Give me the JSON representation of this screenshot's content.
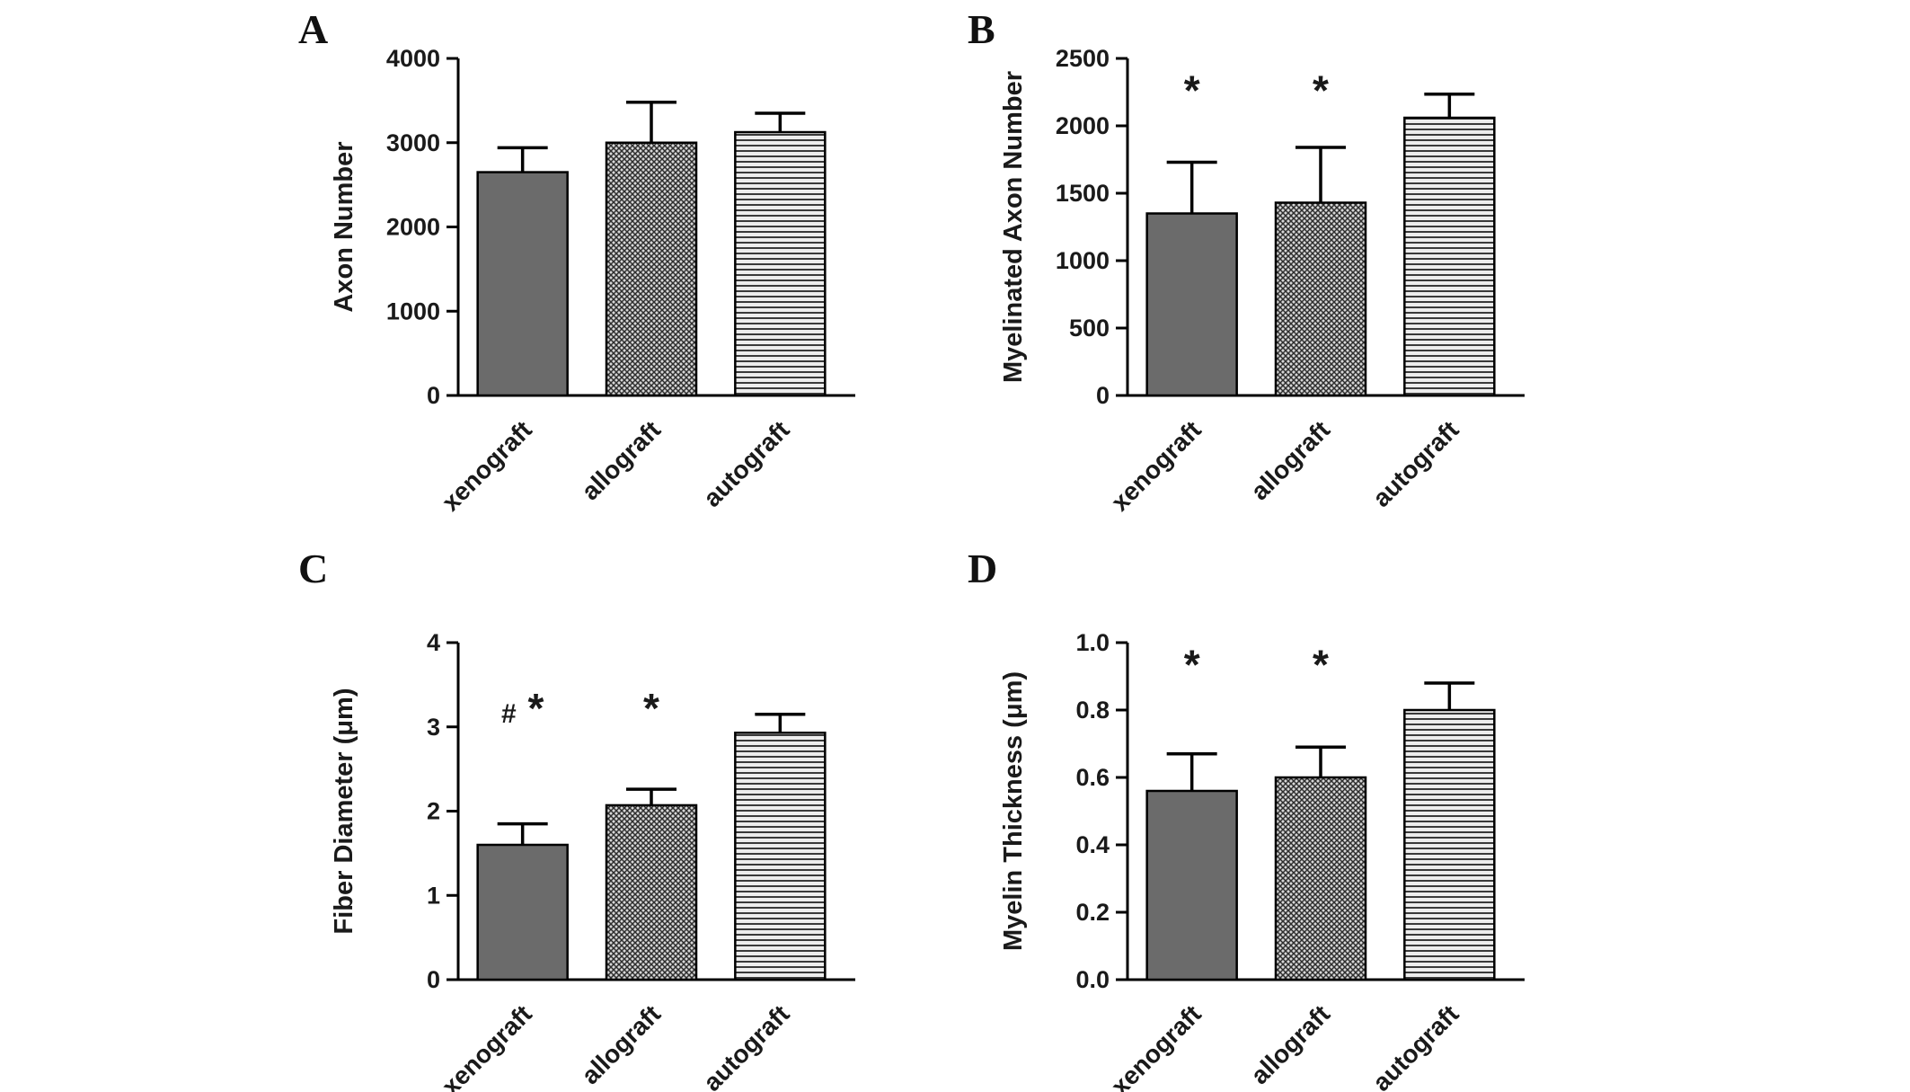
{
  "styles": {
    "solid_fill": "#6b6b6b",
    "cross_bg": "#d6d6d6",
    "cross_fg": "#2e2e2e",
    "hlines_bg": "#ededed",
    "hlines_fg": "#3a3a3a",
    "bar_outline": "#000000",
    "axis_color": "#000000",
    "text_color": "#1a1a1a"
  },
  "chart_data": [
    {
      "type": "bar",
      "panel_label": "A",
      "title": "",
      "ylabel": "Axon Number",
      "xlabel": "",
      "categories": [
        "xenograft",
        "allograft",
        "autograft"
      ],
      "values": [
        2650,
        3000,
        3125
      ],
      "errors_upper": [
        290,
        480,
        225
      ],
      "ylim": [
        0,
        4000
      ],
      "yticks": [
        0,
        1000,
        2000,
        3000,
        4000
      ],
      "ytick_labels": [
        "0",
        "1000",
        "2000",
        "3000",
        "4000"
      ],
      "bar_styles": [
        "solid",
        "crosshatch",
        "hlines"
      ],
      "annotations": [
        "",
        "",
        ""
      ],
      "annotation_y": 3600,
      "grid": false,
      "legend": "none"
    },
    {
      "type": "bar",
      "panel_label": "B",
      "title": "",
      "ylabel": "Myelinated Axon Number",
      "xlabel": "",
      "categories": [
        "xenograft",
        "allograft",
        "autograft"
      ],
      "values": [
        1350,
        1430,
        2060
      ],
      "errors_upper": [
        380,
        410,
        175
      ],
      "ylim": [
        0,
        2500
      ],
      "yticks": [
        0,
        500,
        1000,
        1500,
        2000,
        2500
      ],
      "ytick_labels": [
        "0",
        "500",
        "1000",
        "1500",
        "2000",
        "2500"
      ],
      "bar_styles": [
        "solid",
        "crosshatch",
        "hlines"
      ],
      "annotations": [
        "*",
        "*",
        ""
      ],
      "annotation_y": 2250,
      "grid": false,
      "legend": "none"
    },
    {
      "type": "bar",
      "panel_label": "C",
      "title": "",
      "ylabel": "Fiber Diameter (μm)",
      "xlabel": "",
      "categories": [
        "xenograft",
        "allograft",
        "autograft"
      ],
      "values": [
        1.6,
        2.07,
        2.93
      ],
      "errors_upper": [
        0.25,
        0.19,
        0.22
      ],
      "ylim": [
        0,
        4
      ],
      "yticks": [
        0,
        1,
        2,
        3,
        4
      ],
      "ytick_labels": [
        "0",
        "1",
        "2",
        "3",
        "4"
      ],
      "bar_styles": [
        "solid",
        "crosshatch",
        "hlines"
      ],
      "annotations": [
        "# *",
        "*",
        ""
      ],
      "annotation_y": 3.2,
      "grid": false,
      "legend": "none"
    },
    {
      "type": "bar",
      "panel_label": "D",
      "title": "",
      "ylabel": "Myelin Thickness (μm)",
      "xlabel": "",
      "categories": [
        "xenograft",
        "allograft",
        "autograft"
      ],
      "values": [
        0.56,
        0.6,
        0.8
      ],
      "errors_upper": [
        0.11,
        0.09,
        0.08
      ],
      "ylim": [
        0,
        1.0
      ],
      "yticks": [
        0,
        0.2,
        0.4,
        0.6,
        0.8,
        1.0
      ],
      "ytick_labels": [
        "0.0",
        "0.2",
        "0.4",
        "0.6",
        "0.8",
        "1.0"
      ],
      "bar_styles": [
        "solid",
        "crosshatch",
        "hlines"
      ],
      "annotations": [
        "*",
        "*",
        ""
      ],
      "annotation_y": 0.93,
      "grid": false,
      "legend": "none"
    }
  ]
}
